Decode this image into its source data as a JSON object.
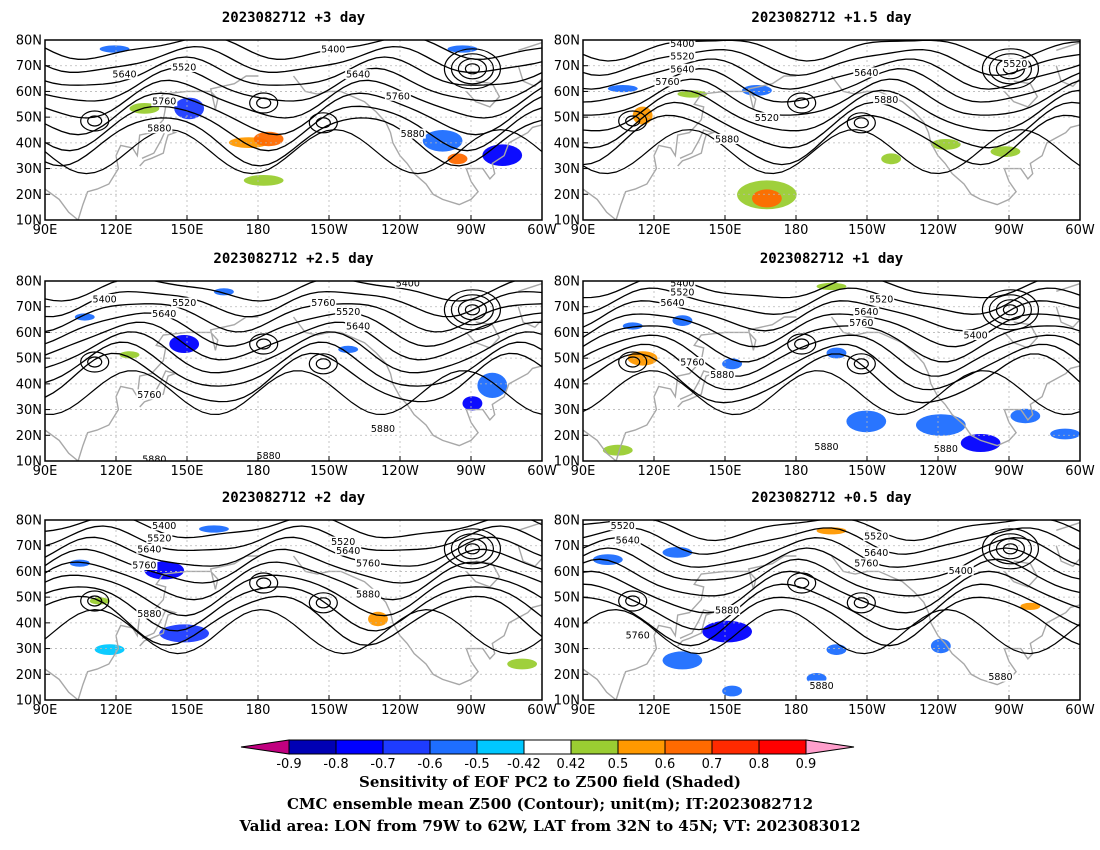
{
  "panels": [
    {
      "title": "2023082712  +3 day",
      "contour_labels": [
        "5400",
        "5520",
        "5640",
        "5640",
        "5760",
        "5760",
        "5880",
        "5880"
      ]
    },
    {
      "title": "2023082712  +1.5 day",
      "contour_labels": [
        "5400",
        "5520",
        "5640",
        "5760",
        "5520",
        "5640",
        "5520",
        "5880",
        "5880"
      ]
    },
    {
      "title": "2023082712  +2.5 day",
      "contour_labels": [
        "5400",
        "5400",
        "5520",
        "5640",
        "5760",
        "5520",
        "5640",
        "5760",
        "5880",
        "5880",
        "5880"
      ]
    },
    {
      "title": "2023082712  +1 day",
      "contour_labels": [
        "5400",
        "5520",
        "5640",
        "5520",
        "5640",
        "5760",
        "5400",
        "5760",
        "5880",
        "5880",
        "5880"
      ]
    },
    {
      "title": "2023082712  +2 day",
      "contour_labels": [
        "5400",
        "5520",
        "5640",
        "5760",
        "5520",
        "5640",
        "5760",
        "5880",
        "5880"
      ]
    },
    {
      "title": "2023082712  +0.5 day",
      "contour_labels": [
        "5520",
        "5640",
        "5520",
        "5640",
        "5760",
        "5400",
        "5880",
        "5760",
        "5880",
        "5880"
      ]
    }
  ],
  "axes": {
    "lat_ticks": [
      "10N",
      "20N",
      "30N",
      "40N",
      "50N",
      "60N",
      "70N",
      "80N"
    ],
    "lon_ticks": [
      "90E",
      "120E",
      "150E",
      "180",
      "150W",
      "120W",
      "90W",
      "60W"
    ],
    "lat_range": [
      10,
      80
    ],
    "lon_range_east": [
      90,
      300
    ],
    "grid": true
  },
  "colorbar": {
    "ticks": [
      "-0.9",
      "-0.8",
      "-0.7",
      "-0.6",
      "-0.5",
      "-0.42",
      "0.42",
      "0.5",
      "0.6",
      "0.7",
      "0.8",
      "0.9"
    ],
    "colors": [
      "#c0007f",
      "#0000b4",
      "#0000ff",
      "#1e3cff",
      "#1e6eff",
      "#00c8ff",
      "#ffffff",
      "#9acd32",
      "#ff9900",
      "#ff6a00",
      "#ff2a00",
      "#ff0000",
      "#ff9fcc"
    ]
  },
  "footer": {
    "line1": "Sensitivity of EOF PC2 to Z500 field (Shaded)",
    "line2": "CMC ensemble mean Z500 (Contour); unit(m); IT:2023082712",
    "line3": "Valid area: LON from 79W to 62W, LAT from 32N to 45N; VT: 2023083012"
  }
}
